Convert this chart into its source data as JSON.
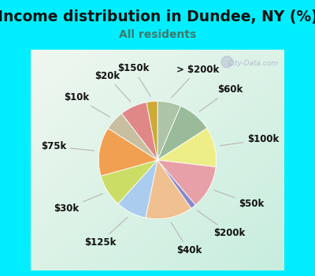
{
  "title": "Income distribution in Dundee, NY (%)",
  "subtitle": "All residents",
  "subtitle_color": "#3d7a6b",
  "title_color": "#111111",
  "background_outer": "#00eeff",
  "background_inner_tl": "#eaf5ee",
  "background_inner_br": "#c8eedd",
  "watermark": "City-Data.com",
  "slices": [
    {
      "label": "> $200k",
      "value": 6.5,
      "color": "#adc4a8"
    },
    {
      "label": "$60k",
      "value": 9.5,
      "color": "#99bb99"
    },
    {
      "label": "$100k",
      "value": 11.0,
      "color": "#eeee88"
    },
    {
      "label": "$50k",
      "value": 12.0,
      "color": "#e8a0a8"
    },
    {
      "label": "$200k",
      "value": 1.5,
      "color": "#8888cc"
    },
    {
      "label": "$40k",
      "value": 13.0,
      "color": "#f0c090"
    },
    {
      "label": "$125k",
      "value": 8.5,
      "color": "#aaccee"
    },
    {
      "label": "$30k",
      "value": 9.0,
      "color": "#ccdd66"
    },
    {
      "label": "$75k",
      "value": 13.5,
      "color": "#f0a050"
    },
    {
      "label": "$10k",
      "value": 5.5,
      "color": "#c8bfa0"
    },
    {
      "label": "$20k",
      "value": 7.5,
      "color": "#e08888"
    },
    {
      "label": "$150k",
      "value": 3.0,
      "color": "#ccaa33"
    }
  ],
  "label_fontsize": 8.5,
  "title_fontsize": 13.5,
  "subtitle_fontsize": 10
}
